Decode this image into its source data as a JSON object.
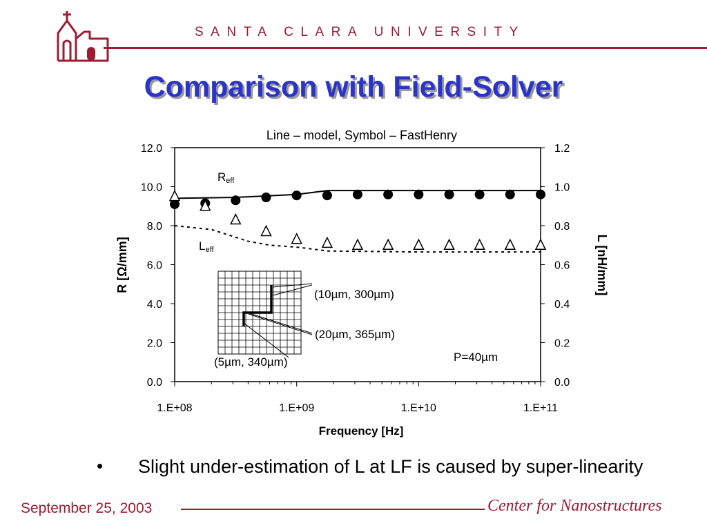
{
  "header": {
    "university": "SANTA CLARA UNIVERSITY",
    "title": "Comparison with Field-Solver",
    "brand_color": "#9e1b32",
    "title_color": "#2b34c8"
  },
  "chart_data": {
    "type": "line",
    "title": "Line – model, Symbol – FastHenry",
    "xlabel": "Frequency [Hz]",
    "xscale": "log",
    "xlim": [
      100000000.0,
      100000000000.0
    ],
    "xticks": [
      "1.E+08",
      "1.E+09",
      "1.E+10",
      "1.E+11"
    ],
    "ylabel_left": "R [Ω/mm]",
    "ylim_left": [
      0,
      12
    ],
    "yticks_left": [
      "0.0",
      "2.0",
      "4.0",
      "6.0",
      "8.0",
      "10.0",
      "12.0"
    ],
    "ylabel_right": "L [nH/mm]",
    "ylim_right": [
      0,
      1.2
    ],
    "yticks_right": [
      "0.0",
      "0.2",
      "0.4",
      "0.6",
      "0.8",
      "1.0",
      "1.2"
    ],
    "series": [
      {
        "name": "Reff",
        "axis": "left",
        "style": "line-solid",
        "x": [
          100000000.0,
          316000000.0,
          1000000000.0,
          1800000000.0,
          10000000000.0,
          100000000000.0
        ],
        "y": [
          9.4,
          9.45,
          9.6,
          9.8,
          9.8,
          9.8
        ]
      },
      {
        "name": "Reff",
        "axis": "left",
        "style": "marker-filled-circle",
        "x": [
          100000000.0,
          178000000.0,
          316000000.0,
          562000000.0,
          1000000000.0,
          1780000000.0,
          3160000000.0,
          5620000000.0,
          10000000000.0,
          17800000000.0,
          31600000000.0,
          56200000000.0,
          100000000000.0
        ],
        "y": [
          9.1,
          9.15,
          9.3,
          9.45,
          9.55,
          9.55,
          9.6,
          9.6,
          9.6,
          9.6,
          9.6,
          9.6,
          9.6
        ]
      },
      {
        "name": "Leff",
        "axis": "right",
        "style": "line-dashed",
        "x": [
          100000000.0,
          200000000.0,
          400000000.0,
          600000000.0,
          1000000000.0,
          1800000000.0,
          10000000000.0,
          100000000000.0
        ],
        "y": [
          0.8,
          0.78,
          0.72,
          0.7,
          0.69,
          0.67,
          0.665,
          0.665
        ]
      },
      {
        "name": "Leff",
        "axis": "right",
        "style": "marker-open-triangle",
        "x": [
          100000000.0,
          178000000.0,
          316000000.0,
          562000000.0,
          1000000000.0,
          1780000000.0,
          3160000000.0,
          5620000000.0,
          10000000000.0,
          17800000000.0,
          31600000000.0,
          56200000000.0,
          100000000000.0
        ],
        "y": [
          0.95,
          0.9,
          0.83,
          0.77,
          0.73,
          0.71,
          0.7,
          0.7,
          0.7,
          0.7,
          0.7,
          0.7,
          0.7
        ]
      }
    ],
    "series_labels": {
      "r_main": "R",
      "r_sub": "eff",
      "l_main": "L",
      "l_sub": "eff"
    },
    "annotations": {
      "a1": "(10µm, 300µm)",
      "a2": "(20µm, 365µm)",
      "a3": "(5µm, 340µm)",
      "pitch": "P=40µm"
    }
  },
  "bullet": {
    "symbol": "•",
    "text": "Slight under-estimation of L at LF is caused by super-linearity"
  },
  "footer": {
    "date": "September 25, 2003",
    "center": "Center for Nanostructures"
  }
}
